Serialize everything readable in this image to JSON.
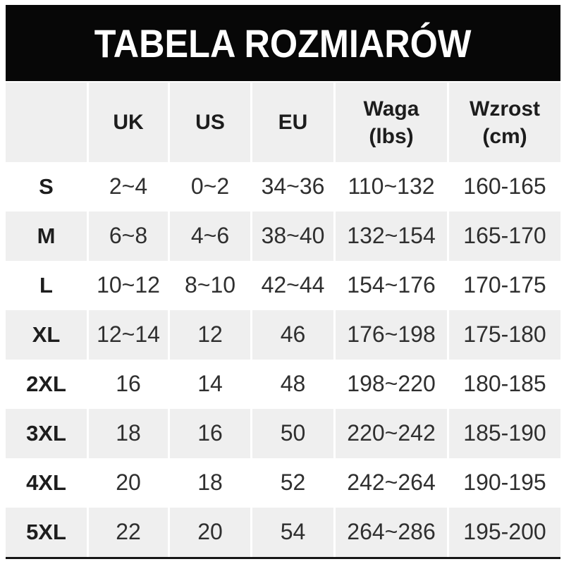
{
  "chart_data": {
    "type": "table",
    "title": "TABELA ROZMIARÓW",
    "columns": [
      "",
      "UK",
      "US",
      "EU",
      "Waga\n(lbs)",
      "Wzrost\n(cm)"
    ],
    "rows": [
      [
        "S",
        "2~4",
        "0~2",
        "34~36",
        "110~132",
        "160-165"
      ],
      [
        "M",
        "6~8",
        "4~6",
        "38~40",
        "132~154",
        "165-170"
      ],
      [
        "L",
        "10~12",
        "8~10",
        "42~44",
        "154~176",
        "170-175"
      ],
      [
        "XL",
        "12~14",
        "12",
        "46",
        "176~198",
        "175-180"
      ],
      [
        "2XL",
        "16",
        "14",
        "48",
        "198~220",
        "180-185"
      ],
      [
        "3XL",
        "18",
        "16",
        "50",
        "220~242",
        "185-190"
      ],
      [
        "4XL",
        "20",
        "18",
        "52",
        "242~264",
        "190-195"
      ],
      [
        "5XL",
        "22",
        "20",
        "54",
        "264~286",
        "195-200"
      ]
    ],
    "layout": {
      "row_count": 8,
      "column_count": 6,
      "alternating_rows": true
    }
  },
  "colors": {
    "banner_bg": "#070707",
    "banner_text": "#ffffff",
    "row_alt_bg": "#efefef",
    "row_bg": "#ffffff",
    "header_text": "#1d1d1d",
    "data_text": "#2f2f2f",
    "bottom_rule": "#161616"
  }
}
